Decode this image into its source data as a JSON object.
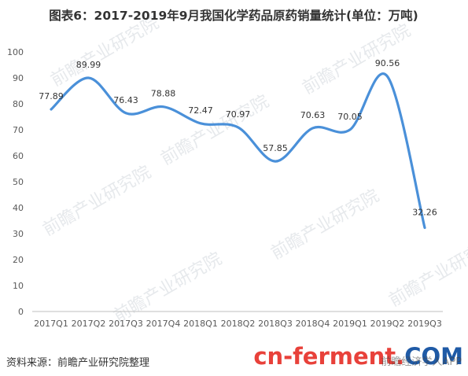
{
  "chart_data": {
    "type": "line",
    "title": "图表6：2017-2019年9月我国化学药品原药销量统计(单位：万吨)",
    "categories": [
      "2017Q1",
      "2017Q2",
      "2017Q3",
      "2017Q4",
      "2018Q1",
      "2018Q2",
      "2018Q3",
      "2018Q4",
      "2019Q1",
      "2019Q2",
      "2019Q3"
    ],
    "series": [
      {
        "values": [
          77.89,
          89.99,
          76.43,
          78.88,
          72.47,
          70.97,
          57.85,
          70.63,
          70.05,
          90.56,
          32.26
        ]
      }
    ],
    "data_labels": [
      "77.89",
      "89.99",
      "76.43",
      "78.88",
      "72.47",
      "70.97",
      "57.85",
      "70.63",
      "70.05",
      "90.56",
      "32.26"
    ],
    "ylim": [
      0,
      100
    ],
    "yticks": [
      0,
      10,
      20,
      30,
      40,
      50,
      60,
      70,
      80,
      90,
      100
    ],
    "xlabel": "",
    "ylabel": "",
    "grid": false,
    "line_color": "#4a90d9",
    "curve": "smooth"
  },
  "source_text": "资料来源：前瞻产业研究院整理",
  "logo": {
    "text_cn": "cn-ferment",
    "text_dot": ".",
    "text_com": "COM",
    "color_cn": "#e8413a",
    "color_com": "#1f5aa6",
    "app_text": "前瞻经济学人APP"
  },
  "watermark": {
    "text": "前瞻产业研究院"
  }
}
